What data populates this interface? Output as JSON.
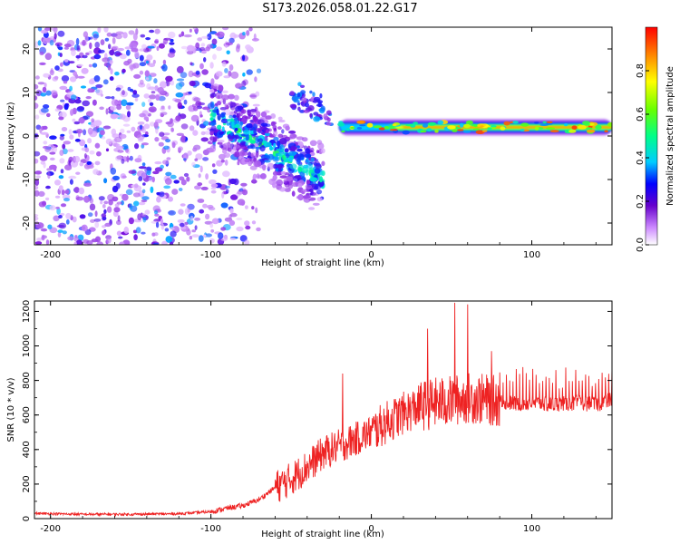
{
  "title": "S173.2026.058.01.22.G17",
  "colors": {
    "snr_line": "#ee2222",
    "axis": "#000000",
    "background": "#ffffff"
  },
  "chart_data": [
    {
      "type": "heatmap",
      "name": "spectrogram",
      "xlabel": "Height of straight line (km)",
      "ylabel": "Frequency (Hz)",
      "xlim": [
        -210,
        150
      ],
      "ylim": [
        -25,
        25
      ],
      "xticks": [
        -200,
        -100,
        0,
        100
      ],
      "yticks": [
        20,
        10,
        0,
        -10,
        -20
      ],
      "colorbar": {
        "label": "Normalized spectral amplitude",
        "range": [
          0.0,
          1.0
        ],
        "ticks": [
          0.0,
          0.2,
          0.4,
          0.6,
          0.8
        ]
      },
      "features": [
        {
          "description": "diffuse noise",
          "x_range": [
            -210,
            -100
          ],
          "freq_range": [
            -25,
            25
          ],
          "amplitude": 0.25
        },
        {
          "description": "descending feature",
          "x_range": [
            -100,
            -30
          ],
          "freq_start": 5,
          "freq_end": -10,
          "amplitude": 0.5
        },
        {
          "description": "steady carrier",
          "x_range": [
            -20,
            150
          ],
          "freq": 2,
          "amplitude": 0.9
        }
      ]
    },
    {
      "type": "line",
      "name": "snr",
      "xlabel": "Height of straight line (km)",
      "ylabel": "SNR (10 * v/v)",
      "xlim": [
        -210,
        150
      ],
      "ylim": [
        0,
        1260
      ],
      "xticks": [
        -200,
        -100,
        0,
        100
      ],
      "yticks": [
        0,
        200,
        400,
        600,
        800,
        1000,
        1200
      ],
      "series": [
        {
          "name": "SNR",
          "x": [
            -210,
            -180,
            -150,
            -120,
            -100,
            -90,
            -80,
            -70,
            -60,
            -50,
            -40,
            -30,
            -20,
            -10,
            0,
            10,
            20,
            30,
            40,
            50,
            60,
            70,
            80,
            90,
            100,
            110,
            120,
            130,
            140,
            150
          ],
          "y": [
            30,
            25,
            25,
            28,
            40,
            60,
            75,
            110,
            180,
            230,
            300,
            380,
            420,
            460,
            500,
            560,
            610,
            650,
            670,
            680,
            700,
            690,
            680,
            665,
            670,
            660,
            665,
            670,
            660,
            690
          ]
        }
      ],
      "peaks": [
        {
          "x": -18,
          "y": 840
        },
        {
          "x": 35,
          "y": 1100
        },
        {
          "x": 52,
          "y": 1250
        },
        {
          "x": 60,
          "y": 1240
        },
        {
          "x": 75,
          "y": 970
        }
      ]
    }
  ]
}
